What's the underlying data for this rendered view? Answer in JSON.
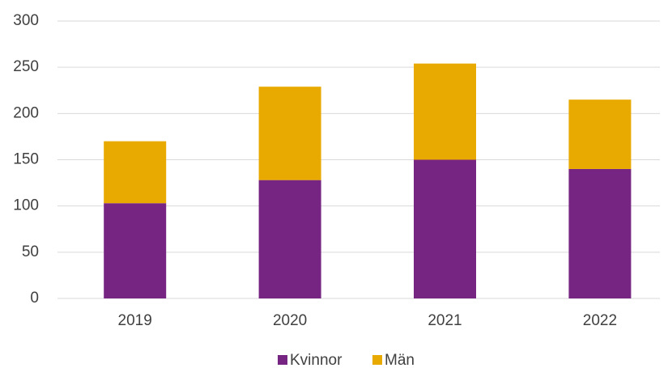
{
  "chart_data": {
    "type": "stacked_bar",
    "categories": [
      "2019",
      "2020",
      "2021",
      "2022"
    ],
    "series": [
      {
        "name": "Kvinnor",
        "color": "#772583",
        "values": [
          103,
          128,
          150,
          140
        ]
      },
      {
        "name": "Män",
        "color": "#e8a900",
        "values": [
          67,
          101,
          104,
          75
        ]
      }
    ],
    "ylim": [
      0,
      300
    ],
    "yticks": [
      0,
      50,
      100,
      150,
      200,
      250,
      300
    ],
    "grid": true,
    "legend": "bottom"
  }
}
